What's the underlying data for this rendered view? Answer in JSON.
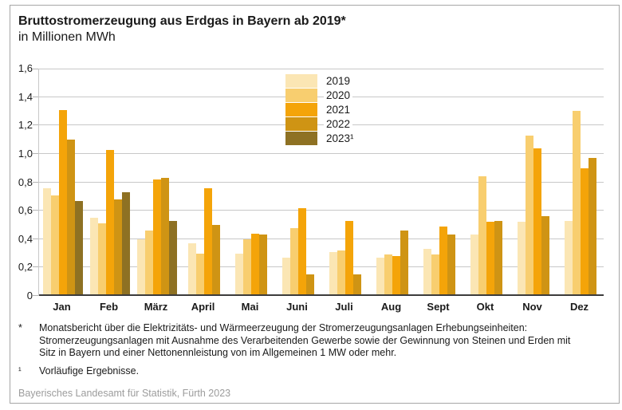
{
  "title": "Bruttostromerzeugung aus Erdgas in Bayern ab 2019*",
  "subtitle": "in Millionen MWh",
  "chart_data": {
    "type": "bar",
    "title": "Bruttostromerzeugung aus Erdgas in Bayern ab 2019*",
    "subtitle": "in Millionen MWh",
    "unit": "Millionen MWh",
    "grid": true,
    "legend_position": "top-center-overlay",
    "ylim": [
      0,
      1.6
    ],
    "yticks": [
      "0",
      "0,2",
      "0,4",
      "0,6",
      "0,8",
      "1,0",
      "1,2",
      "1,4",
      "1,6"
    ],
    "categories": [
      "Jan",
      "Feb",
      "März",
      "April",
      "Mai",
      "Juni",
      "Juli",
      "Aug",
      "Sept",
      "Okt",
      "Nov",
      "Dez"
    ],
    "series": [
      {
        "name": "2019",
        "color": "#FBE6B4",
        "values": [
          0.76,
          0.55,
          0.4,
          0.37,
          0.3,
          0.27,
          0.31,
          0.27,
          0.33,
          0.43,
          0.52,
          0.53
        ]
      },
      {
        "name": "2020",
        "color": "#F8CE6F",
        "values": [
          0.71,
          0.51,
          0.46,
          0.3,
          0.4,
          0.48,
          0.32,
          0.29,
          0.29,
          0.84,
          1.13,
          1.3
        ]
      },
      {
        "name": "2021",
        "color": "#F4A409",
        "values": [
          1.31,
          1.03,
          0.82,
          0.76,
          0.44,
          0.62,
          0.53,
          0.28,
          0.49,
          0.52,
          1.04,
          0.9
        ]
      },
      {
        "name": "2022",
        "color": "#CF9414",
        "values": [
          1.1,
          0.68,
          0.83,
          0.5,
          0.43,
          0.15,
          0.15,
          0.46,
          0.43,
          0.53,
          0.56,
          0.97
        ]
      },
      {
        "name": "2023¹",
        "color": "#8E7123",
        "values": [
          0.67,
          0.73,
          0.53,
          null,
          null,
          null,
          null,
          null,
          null,
          null,
          null,
          null
        ]
      }
    ]
  },
  "footnotes": {
    "star": {
      "marker": "*",
      "lines": [
        "Monatsbericht über die Elektrizitäts- und Wärmeerzeugung der Stromerzeugungsanlagen Erhebungseinheiten:",
        "Stromerzeugungsanlagen mit Ausnahme des Verarbeitenden Gewerbe sowie der Gewinnung von Steinen und Erden mit",
        "Sitz in Bayern und einer Nettonennleistung von im Allgemeinen 1 MW oder mehr."
      ]
    },
    "one": {
      "marker": "¹",
      "text": "Vorläufige Ergebnisse."
    }
  },
  "source": "Bayerisches Landesamt für Statistik, Fürth 2023"
}
